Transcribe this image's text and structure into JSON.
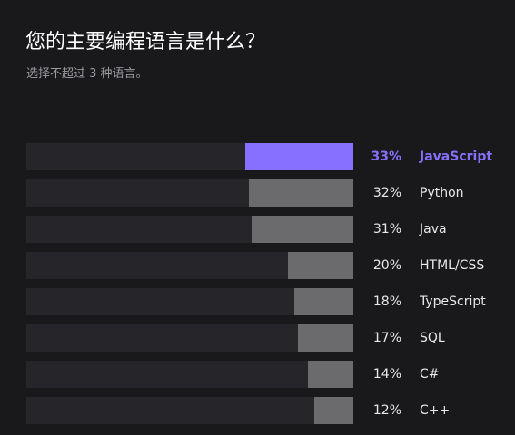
{
  "header": {
    "title": "您的主要编程语言是什么？",
    "subtitle": "选择不超过 3 种语言。"
  },
  "colors": {
    "background": "#19191c",
    "track": "#26262a",
    "bar": "#6b6b6e",
    "highlight": "#8770ff"
  },
  "chart_data": {
    "type": "bar",
    "orientation": "horizontal",
    "title": "您的主要编程语言是什么？",
    "subtitle": "选择不超过 3 种语言。",
    "categories": [
      "JavaScript",
      "Python",
      "Java",
      "HTML/CSS",
      "TypeScript",
      "SQL",
      "C#",
      "C++"
    ],
    "values": [
      33,
      32,
      31,
      20,
      18,
      17,
      14,
      12
    ],
    "value_labels": [
      "33%",
      "32%",
      "31%",
      "20%",
      "18%",
      "17%",
      "14%",
      "12%"
    ],
    "unit": "%",
    "highlighted_category": "JavaScript",
    "xlim": [
      0,
      100
    ],
    "grid": false,
    "legend": "none"
  }
}
